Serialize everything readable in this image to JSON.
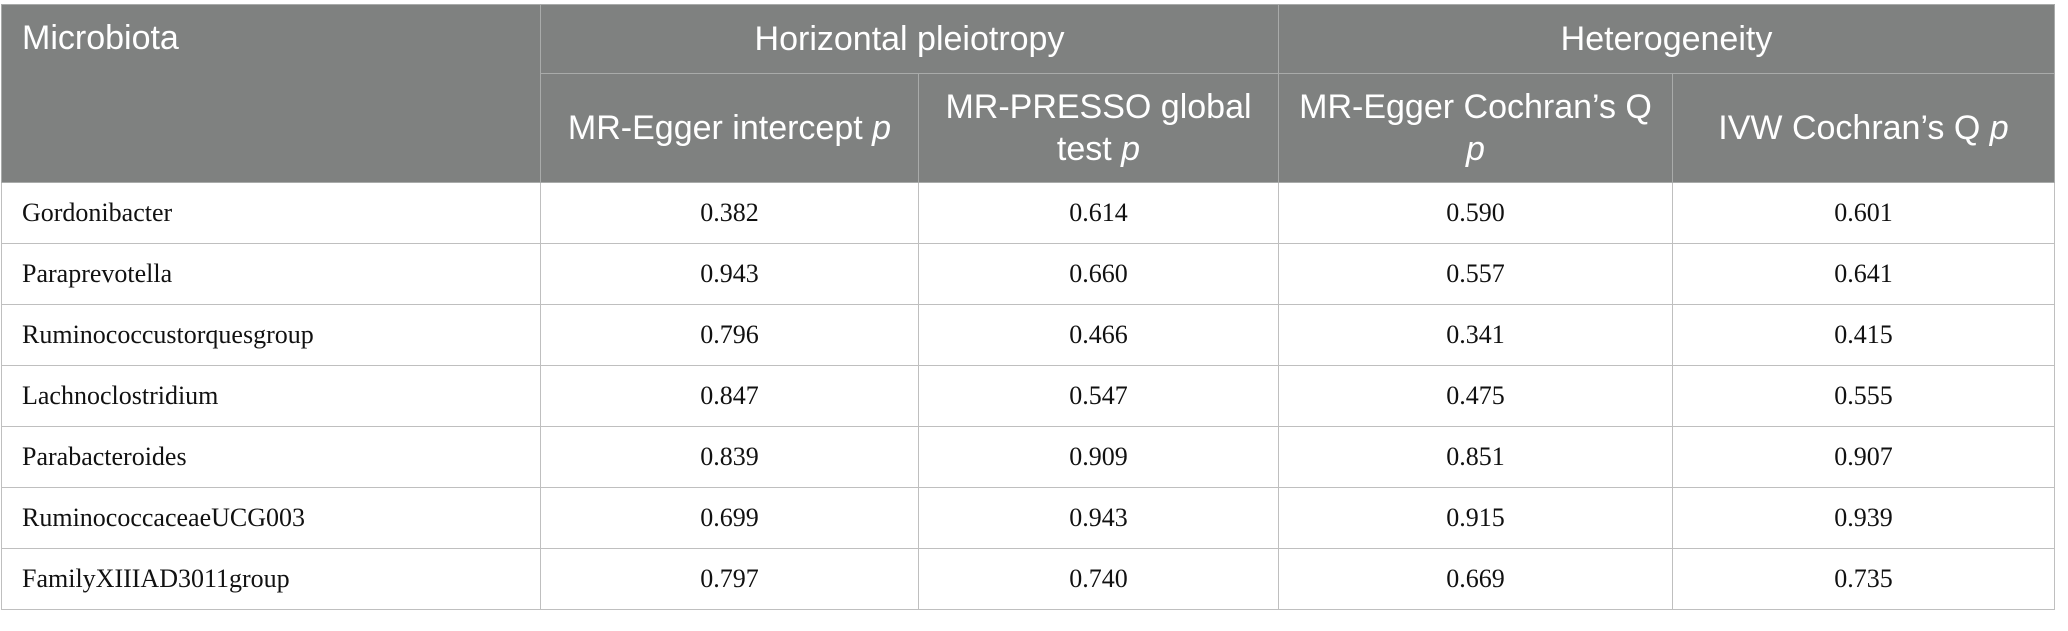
{
  "table": {
    "corner": "Microbiota",
    "groups": [
      "Horizontal pleiotropy",
      "Heterogeneity"
    ],
    "columns": [
      {
        "label": "MR-Egger intercept",
        "stat": "p"
      },
      {
        "label": "MR-PRESSO global test",
        "stat": "p"
      },
      {
        "label": "MR-Egger Cochran’s Q",
        "stat": "p"
      },
      {
        "label": "IVW Cochran’s Q",
        "stat": "p"
      }
    ],
    "rows": [
      [
        "Gordonibacter",
        "0.382",
        "0.614",
        "0.590",
        "0.601"
      ],
      [
        "Paraprevotella",
        "0.943",
        "0.660",
        "0.557",
        "0.641"
      ],
      [
        "Ruminococcustorquesgroup",
        "0.796",
        "0.466",
        "0.341",
        "0.415"
      ],
      [
        "Lachnoclostridium",
        "0.847",
        "0.547",
        "0.475",
        "0.555"
      ],
      [
        "Parabacteroides",
        "0.839",
        "0.909",
        "0.851",
        "0.907"
      ],
      [
        "RuminococcaceaeUCG003",
        "0.699",
        "0.943",
        "0.915",
        "0.939"
      ],
      [
        "FamilyXIIIAD3011group",
        "0.797",
        "0.740",
        "0.669",
        "0.735"
      ]
    ]
  }
}
